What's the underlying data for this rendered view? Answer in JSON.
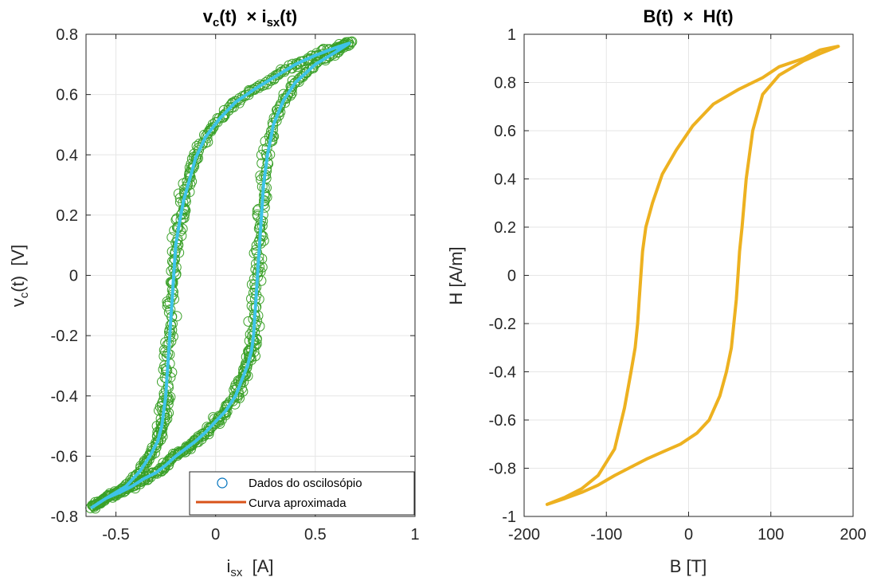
{
  "chart_data": [
    {
      "type": "scatter",
      "title_main": "v",
      "title_sub1": "c",
      "title_mid": "(t)  × i",
      "title_sub2": "sx",
      "title_end": "(t)",
      "xlabel_main": "i",
      "xlabel_sub": "sx",
      "xlabel_end": "  [A]",
      "ylabel_main": "v",
      "ylabel_sub": "c",
      "ylabel_end": "(t)  [V]",
      "xlim": [
        -0.65,
        1.0
      ],
      "ylim": [
        -0.8,
        0.8
      ],
      "xticks": [
        -0.5,
        0,
        0.5,
        1
      ],
      "xtick_labels": [
        "-0.5",
        "0",
        "0.5",
        "1"
      ],
      "yticks": [
        -0.8,
        -0.6,
        -0.4,
        -0.2,
        0,
        0.2,
        0.4,
        0.6,
        0.8
      ],
      "ytick_labels": [
        "-0.8",
        "-0.6",
        "-0.4",
        "-0.2",
        "0",
        "0.2",
        "0.4",
        "0.6",
        "0.8"
      ],
      "grid": true,
      "legend_position": "bottom-right",
      "legend": [
        "Dados do oscilosópio",
        "Curva aproximada"
      ],
      "series": [
        {
          "name": "Dados do oscilosópio",
          "kind": "markers",
          "color": "#3aa028",
          "ascending": {
            "x": [
              -0.62,
              -0.55,
              -0.48,
              -0.42,
              -0.36,
              -0.3,
              -0.25,
              -0.2,
              -0.15,
              -0.1,
              -0.05,
              0.0,
              0.05,
              0.1,
              0.13,
              0.16,
              0.18,
              0.19,
              0.2,
              0.21,
              0.22,
              0.23,
              0.24,
              0.26,
              0.29,
              0.34,
              0.4,
              0.5,
              0.6,
              0.67
            ],
            "y": [
              -0.77,
              -0.74,
              -0.72,
              -0.7,
              -0.675,
              -0.655,
              -0.63,
              -0.6,
              -0.575,
              -0.55,
              -0.52,
              -0.485,
              -0.45,
              -0.4,
              -0.35,
              -0.3,
              -0.25,
              -0.2,
              -0.1,
              0.0,
              0.1,
              0.2,
              0.3,
              0.4,
              0.5,
              0.58,
              0.64,
              0.7,
              0.74,
              0.77
            ]
          },
          "descending": {
            "x": [
              0.67,
              0.6,
              0.5,
              0.4,
              0.3,
              0.2,
              0.1,
              0.02,
              -0.05,
              -0.1,
              -0.13,
              -0.16,
              -0.18,
              -0.2,
              -0.21,
              -0.22,
              -0.23,
              -0.24,
              -0.25,
              -0.26,
              -0.27,
              -0.29,
              -0.33,
              -0.38,
              -0.45,
              -0.55,
              -0.62
            ],
            "y": [
              0.77,
              0.755,
              0.73,
              0.7,
              0.66,
              0.62,
              0.575,
              0.52,
              0.46,
              0.39,
              0.32,
              0.25,
              0.18,
              0.1,
              0.0,
              -0.1,
              -0.2,
              -0.3,
              -0.4,
              -0.45,
              -0.5,
              -0.55,
              -0.6,
              -0.65,
              -0.7,
              -0.74,
              -0.77
            ]
          }
        },
        {
          "name": "Curva aproximada",
          "kind": "line",
          "color": "#3ec3e8",
          "legend_color": "#d95319",
          "x": [
            -0.62,
            -0.55,
            -0.48,
            -0.42,
            -0.36,
            -0.3,
            -0.25,
            -0.2,
            -0.15,
            -0.1,
            -0.05,
            0.0,
            0.05,
            0.1,
            0.13,
            0.16,
            0.18,
            0.19,
            0.2,
            0.21,
            0.22,
            0.23,
            0.24,
            0.26,
            0.29,
            0.34,
            0.4,
            0.5,
            0.6,
            0.67,
            0.6,
            0.5,
            0.4,
            0.3,
            0.2,
            0.1,
            0.02,
            -0.05,
            -0.1,
            -0.13,
            -0.16,
            -0.18,
            -0.2,
            -0.21,
            -0.22,
            -0.23,
            -0.24,
            -0.25,
            -0.26,
            -0.27,
            -0.29,
            -0.33,
            -0.38,
            -0.45,
            -0.55,
            -0.62
          ],
          "y": [
            -0.77,
            -0.74,
            -0.72,
            -0.7,
            -0.675,
            -0.655,
            -0.63,
            -0.6,
            -0.575,
            -0.55,
            -0.52,
            -0.485,
            -0.45,
            -0.4,
            -0.35,
            -0.3,
            -0.25,
            -0.2,
            -0.1,
            0.0,
            0.1,
            0.2,
            0.3,
            0.4,
            0.5,
            0.58,
            0.64,
            0.7,
            0.74,
            0.77,
            0.755,
            0.73,
            0.7,
            0.66,
            0.62,
            0.575,
            0.52,
            0.46,
            0.39,
            0.32,
            0.25,
            0.18,
            0.1,
            0.0,
            -0.1,
            -0.2,
            -0.3,
            -0.4,
            -0.45,
            -0.5,
            -0.55,
            -0.6,
            -0.65,
            -0.7,
            -0.74,
            -0.77
          ]
        }
      ]
    },
    {
      "type": "line",
      "title": "B(t)  ×  H(t)",
      "xlabel": "B [T]",
      "ylabel": "H [A/m]",
      "xlim": [
        -200,
        200
      ],
      "ylim": [
        -1,
        1
      ],
      "xticks": [
        -200,
        -100,
        0,
        100,
        200
      ],
      "xtick_labels": [
        "-200",
        "-100",
        "0",
        "100",
        "200"
      ],
      "yticks": [
        -1,
        -0.8,
        -0.6,
        -0.4,
        -0.2,
        0,
        0.2,
        0.4,
        0.6,
        0.8,
        1
      ],
      "ytick_labels": [
        "-1",
        "-0.8",
        "-0.6",
        "-0.4",
        "-0.2",
        "0",
        "0.2",
        "0.4",
        "0.6",
        "0.8",
        "1"
      ],
      "grid": true,
      "series": [
        {
          "color": "#edb120",
          "x": [
            -172,
            -150,
            -130,
            -110,
            -90,
            -70,
            -50,
            -30,
            -10,
            10,
            25,
            38,
            46,
            52,
            55,
            58,
            60,
            62,
            65,
            70,
            78,
            90,
            110,
            140,
            160,
            182,
            160,
            140,
            110,
            90,
            60,
            30,
            5,
            -15,
            -32,
            -44,
            -52,
            -56,
            -58,
            -60,
            -62,
            -65,
            -70,
            -78,
            -90,
            -110,
            -130,
            -150,
            -172
          ],
          "y": [
            -0.95,
            -0.925,
            -0.9,
            -0.87,
            -0.83,
            -0.795,
            -0.76,
            -0.73,
            -0.7,
            -0.655,
            -0.6,
            -0.5,
            -0.4,
            -0.3,
            -0.2,
            -0.1,
            0.0,
            0.1,
            0.2,
            0.4,
            0.6,
            0.75,
            0.83,
            0.89,
            0.92,
            0.95,
            0.935,
            0.9,
            0.865,
            0.82,
            0.77,
            0.71,
            0.62,
            0.52,
            0.42,
            0.3,
            0.2,
            0.1,
            0.0,
            -0.1,
            -0.2,
            -0.3,
            -0.4,
            -0.55,
            -0.72,
            -0.83,
            -0.885,
            -0.92,
            -0.95
          ]
        }
      ]
    }
  ]
}
